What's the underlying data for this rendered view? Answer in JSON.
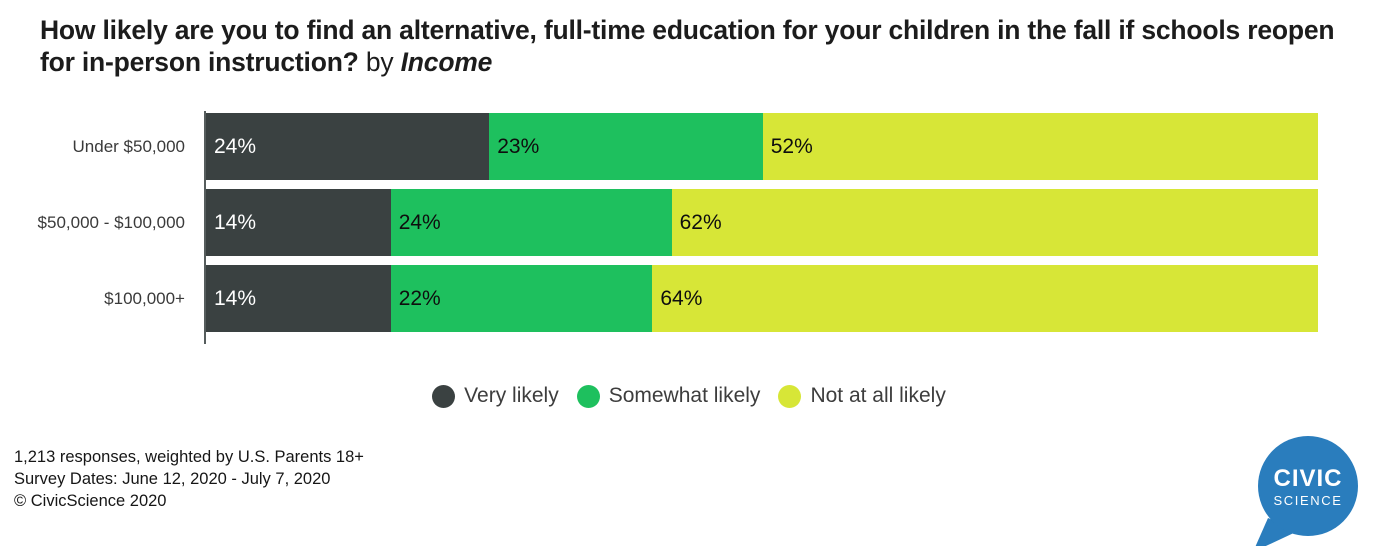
{
  "title": {
    "main": "How likely are you to find an alternative, full-time education for your children in the fall if schools reopen for in-person instruction?",
    "by": "by",
    "group": "Income"
  },
  "chart_data": {
    "type": "bar",
    "stacked": true,
    "orientation": "horizontal",
    "categories": [
      "Under $50,000",
      "$50,000 - $100,000",
      "$100,000+"
    ],
    "series": [
      {
        "name": "Very likely",
        "color": "#3a4141",
        "text_color": "#ffffff",
        "values": [
          24,
          14,
          14
        ]
      },
      {
        "name": "Somewhat likely",
        "color": "#1ec05e",
        "text_color": "#0e0e0e",
        "values": [
          23,
          24,
          22
        ]
      },
      {
        "name": "Not at all likely",
        "color": "#d7e637",
        "text_color": "#0e0e0e",
        "values": [
          52,
          62,
          64
        ]
      }
    ],
    "value_suffix": "%",
    "xlabel": "",
    "ylabel": "",
    "xlim": [
      0,
      100
    ],
    "grid": false,
    "legend_position": "bottom-center"
  },
  "footer": {
    "line1": "1,213 responses, weighted by U.S. Parents 18+",
    "line2": "Survey Dates: June 12, 2020 - July 7, 2020",
    "line3": "© CivicScience 2020"
  },
  "logo": {
    "line1": "CIVIC",
    "line2": "SCIENCE",
    "color": "#2a7dbd"
  }
}
